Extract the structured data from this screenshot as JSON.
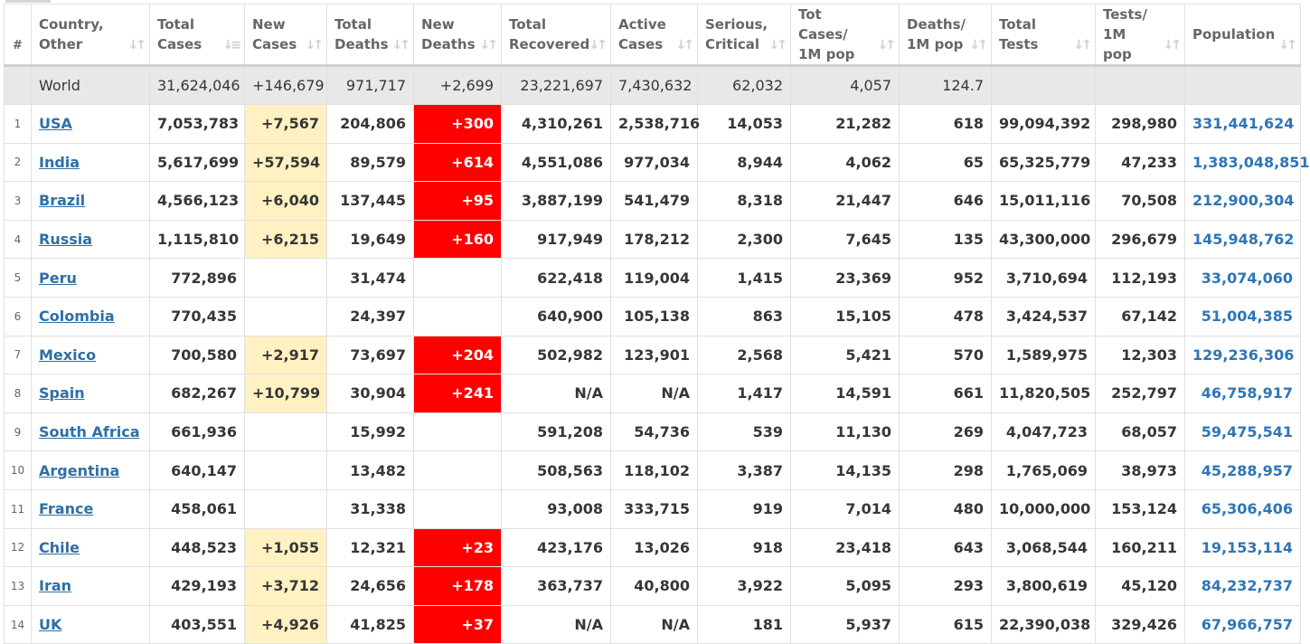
{
  "table": {
    "headers": [
      {
        "key": "idx",
        "label": "#"
      },
      {
        "key": "country",
        "label": "Country,\nOther"
      },
      {
        "key": "total_cases",
        "label": "Total\nCases"
      },
      {
        "key": "new_cases",
        "label": "New\nCases"
      },
      {
        "key": "total_deaths",
        "label": "Total\nDeaths"
      },
      {
        "key": "new_deaths",
        "label": "New\nDeaths"
      },
      {
        "key": "total_recovered",
        "label": "Total\nRecovered"
      },
      {
        "key": "active_cases",
        "label": "Active\nCases"
      },
      {
        "key": "serious_critical",
        "label": "Serious,\nCritical"
      },
      {
        "key": "cases_per_1m",
        "label": "Tot Cases/\n1M pop"
      },
      {
        "key": "deaths_per_1m",
        "label": "Deaths/\n1M pop"
      },
      {
        "key": "total_tests",
        "label": "Total\nTests"
      },
      {
        "key": "tests_per_1m",
        "label": "Tests/\n1M pop"
      },
      {
        "key": "population",
        "label": "Population"
      }
    ],
    "sort_icon": "sort-arrows-icon",
    "active_sort_icon": "sort-descending-icon",
    "world": {
      "country": "World",
      "total_cases": "31,624,046",
      "new_cases": "+146,679",
      "total_deaths": "971,717",
      "new_deaths": "+2,699",
      "total_recovered": "23,221,697",
      "active_cases": "7,430,632",
      "serious_critical": "62,032",
      "cases_per_1m": "4,057",
      "deaths_per_1m": "124.7",
      "total_tests": "",
      "tests_per_1m": "",
      "population": ""
    },
    "rows": [
      {
        "idx": "1",
        "country": "USA",
        "total_cases": "7,053,783",
        "new_cases": "+7,567",
        "total_deaths": "204,806",
        "new_deaths": "+300",
        "total_recovered": "4,310,261",
        "active_cases": "2,538,716",
        "serious_critical": "14,053",
        "cases_per_1m": "21,282",
        "deaths_per_1m": "618",
        "total_tests": "99,094,392",
        "tests_per_1m": "298,980",
        "population": "331,441,624"
      },
      {
        "idx": "2",
        "country": "India",
        "total_cases": "5,617,699",
        "new_cases": "+57,594",
        "total_deaths": "89,579",
        "new_deaths": "+614",
        "total_recovered": "4,551,086",
        "active_cases": "977,034",
        "serious_critical": "8,944",
        "cases_per_1m": "4,062",
        "deaths_per_1m": "65",
        "total_tests": "65,325,779",
        "tests_per_1m": "47,233",
        "population": "1,383,048,851"
      },
      {
        "idx": "3",
        "country": "Brazil",
        "total_cases": "4,566,123",
        "new_cases": "+6,040",
        "total_deaths": "137,445",
        "new_deaths": "+95",
        "total_recovered": "3,887,199",
        "active_cases": "541,479",
        "serious_critical": "8,318",
        "cases_per_1m": "21,447",
        "deaths_per_1m": "646",
        "total_tests": "15,011,116",
        "tests_per_1m": "70,508",
        "population": "212,900,304"
      },
      {
        "idx": "4",
        "country": "Russia",
        "total_cases": "1,115,810",
        "new_cases": "+6,215",
        "total_deaths": "19,649",
        "new_deaths": "+160",
        "total_recovered": "917,949",
        "active_cases": "178,212",
        "serious_critical": "2,300",
        "cases_per_1m": "7,645",
        "deaths_per_1m": "135",
        "total_tests": "43,300,000",
        "tests_per_1m": "296,679",
        "population": "145,948,762"
      },
      {
        "idx": "5",
        "country": "Peru",
        "total_cases": "772,896",
        "new_cases": "",
        "total_deaths": "31,474",
        "new_deaths": "",
        "total_recovered": "622,418",
        "active_cases": "119,004",
        "serious_critical": "1,415",
        "cases_per_1m": "23,369",
        "deaths_per_1m": "952",
        "total_tests": "3,710,694",
        "tests_per_1m": "112,193",
        "population": "33,074,060"
      },
      {
        "idx": "6",
        "country": "Colombia",
        "total_cases": "770,435",
        "new_cases": "",
        "total_deaths": "24,397",
        "new_deaths": "",
        "total_recovered": "640,900",
        "active_cases": "105,138",
        "serious_critical": "863",
        "cases_per_1m": "15,105",
        "deaths_per_1m": "478",
        "total_tests": "3,424,537",
        "tests_per_1m": "67,142",
        "population": "51,004,385"
      },
      {
        "idx": "7",
        "country": "Mexico",
        "total_cases": "700,580",
        "new_cases": "+2,917",
        "total_deaths": "73,697",
        "new_deaths": "+204",
        "total_recovered": "502,982",
        "active_cases": "123,901",
        "serious_critical": "2,568",
        "cases_per_1m": "5,421",
        "deaths_per_1m": "570",
        "total_tests": "1,589,975",
        "tests_per_1m": "12,303",
        "population": "129,236,306"
      },
      {
        "idx": "8",
        "country": "Spain",
        "total_cases": "682,267",
        "new_cases": "+10,799",
        "total_deaths": "30,904",
        "new_deaths": "+241",
        "total_recovered": "N/A",
        "active_cases": "N/A",
        "serious_critical": "1,417",
        "cases_per_1m": "14,591",
        "deaths_per_1m": "661",
        "total_tests": "11,820,505",
        "tests_per_1m": "252,797",
        "population": "46,758,917"
      },
      {
        "idx": "9",
        "country": "South Africa",
        "total_cases": "661,936",
        "new_cases": "",
        "total_deaths": "15,992",
        "new_deaths": "",
        "total_recovered": "591,208",
        "active_cases": "54,736",
        "serious_critical": "539",
        "cases_per_1m": "11,130",
        "deaths_per_1m": "269",
        "total_tests": "4,047,723",
        "tests_per_1m": "68,057",
        "population": "59,475,541"
      },
      {
        "idx": "10",
        "country": "Argentina",
        "total_cases": "640,147",
        "new_cases": "",
        "total_deaths": "13,482",
        "new_deaths": "",
        "total_recovered": "508,563",
        "active_cases": "118,102",
        "serious_critical": "3,387",
        "cases_per_1m": "14,135",
        "deaths_per_1m": "298",
        "total_tests": "1,765,069",
        "tests_per_1m": "38,973",
        "population": "45,288,957"
      },
      {
        "idx": "11",
        "country": "France",
        "total_cases": "458,061",
        "new_cases": "",
        "total_deaths": "31,338",
        "new_deaths": "",
        "total_recovered": "93,008",
        "active_cases": "333,715",
        "serious_critical": "919",
        "cases_per_1m": "7,014",
        "deaths_per_1m": "480",
        "total_tests": "10,000,000",
        "tests_per_1m": "153,124",
        "population": "65,306,406"
      },
      {
        "idx": "12",
        "country": "Chile",
        "total_cases": "448,523",
        "new_cases": "+1,055",
        "total_deaths": "12,321",
        "new_deaths": "+23",
        "total_recovered": "423,176",
        "active_cases": "13,026",
        "serious_critical": "918",
        "cases_per_1m": "23,418",
        "deaths_per_1m": "643",
        "total_tests": "3,068,544",
        "tests_per_1m": "160,211",
        "population": "19,153,114"
      },
      {
        "idx": "13",
        "country": "Iran",
        "total_cases": "429,193",
        "new_cases": "+3,712",
        "total_deaths": "24,656",
        "new_deaths": "+178",
        "total_recovered": "363,737",
        "active_cases": "40,800",
        "serious_critical": "3,922",
        "cases_per_1m": "5,095",
        "deaths_per_1m": "293",
        "total_tests": "3,800,619",
        "tests_per_1m": "45,120",
        "population": "84,232,737"
      },
      {
        "idx": "14",
        "country": "UK",
        "total_cases": "403,551",
        "new_cases": "+4,926",
        "total_deaths": "41,825",
        "new_deaths": "+37",
        "total_recovered": "N/A",
        "active_cases": "N/A",
        "serious_critical": "181",
        "cases_per_1m": "5,937",
        "deaths_per_1m": "615",
        "total_tests": "22,390,038",
        "tests_per_1m": "329,426",
        "population": "67,966,757"
      }
    ]
  },
  "colors": {
    "new_cases_highlight": "#fff1c2",
    "new_deaths_highlight": "#ff0000",
    "country_link": "#2e6fa6",
    "population_text": "#2e75b6",
    "world_row_bg": "#e8e8e8"
  }
}
